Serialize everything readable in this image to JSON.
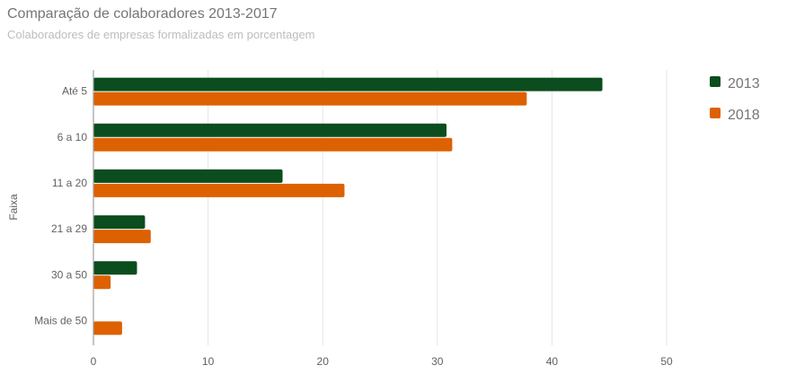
{
  "chart_data": {
    "type": "bar",
    "orientation": "horizontal",
    "title": "Comparação de colaboradores 2013-2017",
    "subtitle": "Colaboradores de empresas formalizadas em porcentagem",
    "ylabel": "Faixa",
    "xlabel": "",
    "categories": [
      "Até 5",
      "6 a 10",
      "11 a 20",
      "21 a 29",
      "30 a 50",
      "Mais de 50"
    ],
    "series": [
      {
        "name": "2013",
        "color": "#0b4d1e",
        "values": [
          44.4,
          30.8,
          16.5,
          4.5,
          3.8,
          0
        ]
      },
      {
        "name": "2018",
        "color": "#dd6100",
        "values": [
          37.8,
          31.3,
          21.9,
          5.0,
          1.5,
          2.5
        ]
      }
    ],
    "xlim": [
      0,
      50
    ],
    "xticks": [
      "0",
      "10",
      "20",
      "30",
      "40",
      "50"
    ],
    "grid": true,
    "legend_position": "right"
  }
}
